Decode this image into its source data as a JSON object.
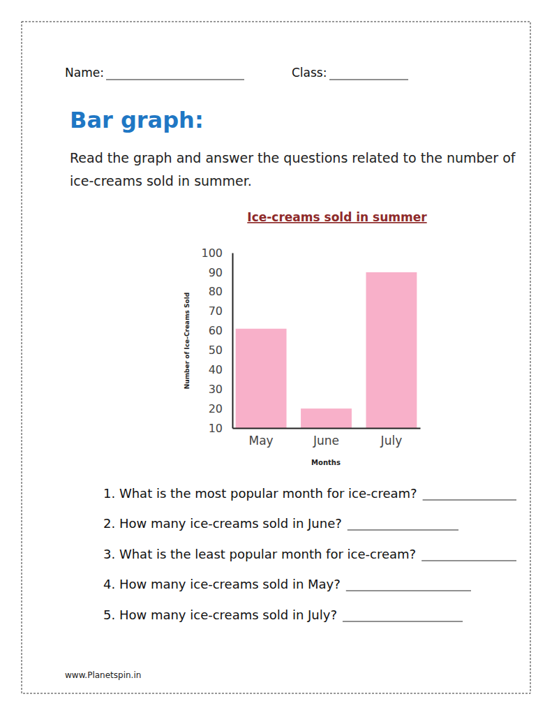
{
  "worksheet": {
    "name_label": "Name:",
    "class_label": "Class:",
    "heading": "Bar graph:",
    "instructions": [
      "Read the graph and answer the questions related to the number of",
      "ice-creams sold in summer."
    ],
    "questions": [
      "1. What is the most popular month for ice-cream?",
      "2. How many ice-creams sold in June?",
      "3. What is the least popular month for ice-cream?",
      "4. How many ice-creams sold in May?",
      "5. How many ice-creams sold in July?"
    ],
    "footer": "www.Planetspin.in"
  },
  "chart_data": {
    "type": "bar",
    "title": "Ice-creams sold in summer",
    "x_label": "Months",
    "y_label": "Number of Ice-Creams Sold",
    "categories": [
      "May",
      "June",
      "July"
    ],
    "values": [
      61,
      20,
      90
    ],
    "color": "#f8b0c9",
    "ylim": [
      10,
      100
    ],
    "yticks": [
      10,
      20,
      30,
      40,
      50,
      60,
      70,
      80,
      90,
      100
    ],
    "grid": false
  }
}
